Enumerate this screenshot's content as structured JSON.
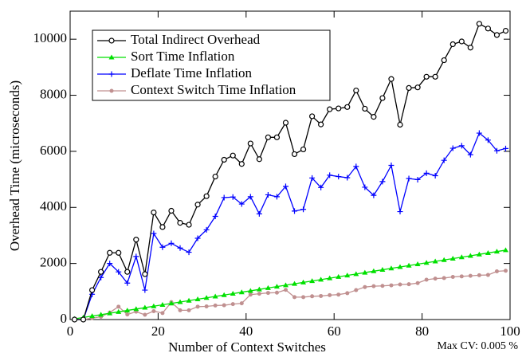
{
  "chart_data": {
    "type": "line",
    "xlabel": "Number of Context Switches",
    "ylabel": "Overhead Time (microseconds)",
    "annotation": "Max CV: 0.005 %",
    "xlim": [
      0,
      100
    ],
    "xticks": [
      0,
      20,
      40,
      60,
      80,
      100
    ],
    "ylim": [
      0,
      11000
    ],
    "yticks": [
      0,
      2000,
      4000,
      6000,
      8000,
      10000
    ],
    "legend": "upper-left",
    "x": [
      1,
      3,
      5,
      7,
      9,
      11,
      13,
      15,
      17,
      19,
      21,
      23,
      25,
      27,
      29,
      31,
      33,
      35,
      37,
      39,
      41,
      43,
      45,
      47,
      49,
      51,
      53,
      55,
      57,
      59,
      61,
      63,
      65,
      67,
      69,
      71,
      73,
      75,
      77,
      79,
      81,
      83,
      85,
      87,
      89,
      91,
      93,
      95,
      97,
      99
    ],
    "series": [
      {
        "name": "Total Indirect Overhead",
        "color": "#000000",
        "marker": "circle",
        "values": [
          0,
          0,
          1050,
          1700,
          2380,
          2380,
          1700,
          2850,
          1620,
          3820,
          3300,
          3880,
          3450,
          3380,
          4100,
          4400,
          5100,
          5700,
          5850,
          5550,
          6280,
          5720,
          6500,
          6500,
          7020,
          5900,
          6070,
          7250,
          6960,
          7500,
          7530,
          7580,
          8170,
          7520,
          7230,
          7900,
          8580,
          6950,
          8260,
          8280,
          8660,
          8660,
          9250,
          9820,
          9920,
          9700,
          10550,
          10380,
          10150,
          10300
        ]
      },
      {
        "name": "Sort Time Inflation",
        "color": "#00e000",
        "marker": "triangle",
        "values": [
          25,
          75,
          125,
          175,
          225,
          275,
          325,
          375,
          425,
          475,
          525,
          575,
          625,
          675,
          725,
          775,
          825,
          875,
          925,
          975,
          1025,
          1075,
          1125,
          1175,
          1225,
          1275,
          1325,
          1375,
          1425,
          1475,
          1525,
          1575,
          1625,
          1675,
          1725,
          1775,
          1825,
          1875,
          1925,
          1975,
          2025,
          2075,
          2125,
          2175,
          2225,
          2275,
          2325,
          2375,
          2425,
          2475
        ]
      },
      {
        "name": "Deflate Time Inflation",
        "color": "#0000ff",
        "marker": "plus",
        "values": [
          0,
          0,
          900,
          1500,
          2000,
          1700,
          1300,
          2250,
          1050,
          3070,
          2580,
          2720,
          2550,
          2400,
          2900,
          3200,
          3680,
          4350,
          4370,
          4120,
          4380,
          3770,
          4450,
          4380,
          4750,
          3870,
          3930,
          5050,
          4710,
          5150,
          5100,
          5060,
          5460,
          4720,
          4430,
          4920,
          5500,
          3850,
          5030,
          4990,
          5220,
          5130,
          5680,
          6110,
          6200,
          5880,
          6650,
          6400,
          6020,
          6100
        ]
      },
      {
        "name": "Context Switch Time Inflation",
        "color": "#c09090",
        "marker": "dot",
        "values": [
          0,
          0,
          50,
          100,
          250,
          460,
          180,
          280,
          170,
          300,
          230,
          620,
          330,
          330,
          460,
          470,
          500,
          510,
          550,
          580,
          890,
          920,
          950,
          960,
          1060,
          800,
          800,
          830,
          840,
          870,
          890,
          940,
          1050,
          1160,
          1190,
          1200,
          1220,
          1250,
          1260,
          1300,
          1420,
          1460,
          1480,
          1520,
          1540,
          1560,
          1580,
          1590,
          1720,
          1740
        ]
      }
    ]
  }
}
